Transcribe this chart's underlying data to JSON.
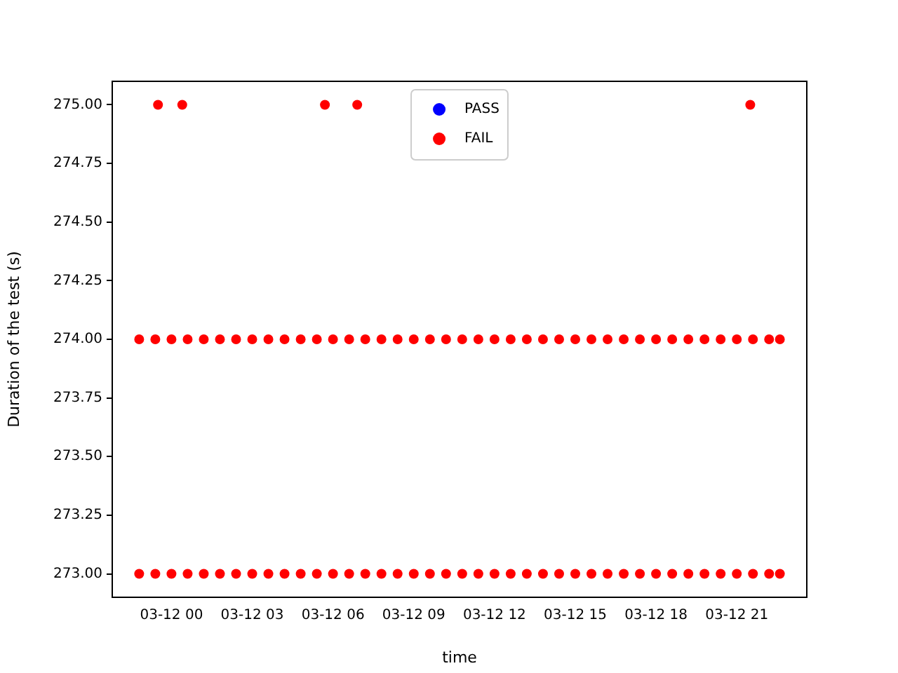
{
  "chart_data": {
    "type": "scatter",
    "xlabel": "time",
    "ylabel": "Duration of the test (s)",
    "xlim": [
      "--03-11T21:48",
      "--03-12T23:36"
    ],
    "ylim": [
      272.9,
      275.1
    ],
    "xticks": [
      {
        "value": "--03-12T00:00",
        "label": "03-12 00"
      },
      {
        "value": "--03-12T03:00",
        "label": "03-12 03"
      },
      {
        "value": "--03-12T06:00",
        "label": "03-12 06"
      },
      {
        "value": "--03-12T09:00",
        "label": "03-12 09"
      },
      {
        "value": "--03-12T12:00",
        "label": "03-12 12"
      },
      {
        "value": "--03-12T15:00",
        "label": "03-12 15"
      },
      {
        "value": "--03-12T18:00",
        "label": "03-12 18"
      },
      {
        "value": "--03-12T21:00",
        "label": "03-12 21"
      }
    ],
    "yticks": [
      {
        "value": 273,
        "label": "273.00"
      },
      {
        "value": 273.25,
        "label": "273.25"
      },
      {
        "value": 273.5,
        "label": "273.50"
      },
      {
        "value": 273.75,
        "label": "273.75"
      },
      {
        "value": 274,
        "label": "274.00"
      },
      {
        "value": 274.25,
        "label": "274.25"
      },
      {
        "value": 274.5,
        "label": "274.50"
      },
      {
        "value": 274.75,
        "label": "274.75"
      },
      {
        "value": 275,
        "label": "275.00"
      }
    ],
    "grid": false,
    "legend": "top",
    "marker": "circle",
    "series": [
      {
        "name": "PASS",
        "color": "#0000ff"
      },
      {
        "name": "FAIL",
        "color": "#ff0000",
        "x": [
          "--03-11T22:48",
          "--03-11T23:24",
          "--03-12T00:00",
          "--03-12T00:36",
          "--03-12T01:12",
          "--03-12T01:48",
          "--03-12T02:24",
          "--03-12T03:00",
          "--03-12T03:36",
          "--03-12T04:12",
          "--03-12T04:48",
          "--03-12T05:24",
          "--03-12T06:00",
          "--03-12T06:36",
          "--03-12T07:12",
          "--03-12T07:48",
          "--03-12T08:24",
          "--03-12T09:00",
          "--03-12T09:36",
          "--03-12T10:12",
          "--03-12T10:48",
          "--03-12T11:24",
          "--03-12T12:00",
          "--03-12T12:36",
          "--03-12T13:12",
          "--03-12T13:48",
          "--03-12T14:24",
          "--03-12T15:00",
          "--03-12T15:36",
          "--03-12T16:12",
          "--03-12T16:48",
          "--03-12T17:24",
          "--03-12T18:00",
          "--03-12T18:36",
          "--03-12T19:12",
          "--03-12T19:48",
          "--03-12T20:24",
          "--03-12T21:00",
          "--03-12T21:36",
          "--03-12T22:12",
          "--03-12T22:36",
          "--03-11T22:48",
          "--03-11T23:24",
          "--03-12T00:00",
          "--03-12T00:36",
          "--03-12T01:12",
          "--03-12T01:48",
          "--03-12T02:24",
          "--03-12T03:00",
          "--03-12T03:36",
          "--03-12T04:12",
          "--03-12T04:48",
          "--03-12T05:24",
          "--03-12T06:00",
          "--03-12T06:36",
          "--03-12T07:12",
          "--03-12T07:48",
          "--03-12T08:24",
          "--03-12T09:00",
          "--03-12T09:36",
          "--03-12T10:12",
          "--03-12T10:48",
          "--03-12T11:24",
          "--03-12T12:00",
          "--03-12T12:36",
          "--03-12T13:12",
          "--03-12T13:48",
          "--03-12T14:24",
          "--03-12T15:00",
          "--03-12T15:36",
          "--03-12T16:12",
          "--03-12T16:48",
          "--03-12T17:24",
          "--03-12T18:00",
          "--03-12T18:36",
          "--03-12T19:12",
          "--03-12T19:48",
          "--03-12T20:24",
          "--03-12T21:00",
          "--03-12T21:36",
          "--03-12T22:12",
          "--03-12T22:36",
          "--03-11T23:30",
          "--03-12T00:24",
          "--03-12T05:42",
          "--03-12T06:54",
          "--03-12T21:30"
        ],
        "values": [
          274,
          274,
          274,
          274,
          274,
          274,
          274,
          274,
          274,
          274,
          274,
          274,
          274,
          274,
          274,
          274,
          274,
          274,
          274,
          274,
          274,
          274,
          274,
          274,
          274,
          274,
          274,
          274,
          274,
          274,
          274,
          274,
          274,
          274,
          274,
          274,
          274,
          274,
          274,
          274,
          274,
          273,
          273,
          273,
          273,
          273,
          273,
          273,
          273,
          273,
          273,
          273,
          273,
          273,
          273,
          273,
          273,
          273,
          273,
          273,
          273,
          273,
          273,
          273,
          273,
          273,
          273,
          273,
          273,
          273,
          273,
          273,
          273,
          273,
          273,
          273,
          273,
          273,
          273,
          273,
          273,
          273,
          275,
          275,
          275,
          275,
          275
        ]
      }
    ]
  }
}
